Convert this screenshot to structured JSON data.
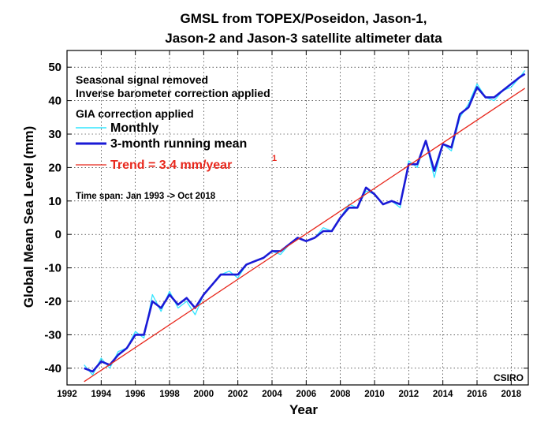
{
  "chart_data": {
    "type": "line",
    "title": [
      "GMSL from TOPEX/Poseidon, Jason-1,",
      "Jason-2 and Jason-3 satellite altimeter data"
    ],
    "xlabel": "Year",
    "ylabel": "Global Mean Sea Level (mm)",
    "xlim": [
      1992,
      2019
    ],
    "ylim": [
      -45,
      55
    ],
    "xticks": [
      1992,
      1994,
      1996,
      1998,
      2000,
      2002,
      2004,
      2006,
      2008,
      2010,
      2012,
      2014,
      2016,
      2018
    ],
    "yticks": [
      -40,
      -30,
      -20,
      -10,
      0,
      10,
      20,
      30,
      40,
      50
    ],
    "grid": true,
    "notes": [
      "Seasonal signal removed",
      "Inverse barometer correction applied",
      "GIA correction applied"
    ],
    "time_span": "Time span: Jan 1993 -> Oct 2018",
    "credit": "CSIRO",
    "legend_position": "top-left",
    "trend_rate_mm_per_year": 3.4,
    "series": [
      {
        "name": "Monthly",
        "color": "#33e5ff",
        "x": [
          1993.0,
          1993.5,
          1994.0,
          1994.5,
          1995.0,
          1995.5,
          1996.0,
          1996.5,
          1997.0,
          1997.5,
          1998.0,
          1998.5,
          1999.0,
          1999.5,
          2000.0,
          2000.5,
          2001.0,
          2001.5,
          2002.0,
          2002.5,
          2003.0,
          2003.5,
          2004.0,
          2004.5,
          2005.0,
          2005.5,
          2006.0,
          2006.5,
          2007.0,
          2007.5,
          2008.0,
          2008.5,
          2009.0,
          2009.5,
          2010.0,
          2010.5,
          2011.0,
          2011.5,
          2012.0,
          2012.5,
          2013.0,
          2013.5,
          2014.0,
          2014.5,
          2015.0,
          2015.5,
          2016.0,
          2016.5,
          2017.0,
          2017.5,
          2018.0,
          2018.5,
          2018.8
        ],
        "values": [
          -39,
          -42,
          -37,
          -40,
          -35,
          -34,
          -29,
          -31,
          -18,
          -23,
          -17,
          -22,
          -20,
          -24,
          -18,
          -15,
          -12,
          -11,
          -13,
          -9,
          -8,
          -7,
          -5,
          -6,
          -3,
          -1,
          -2,
          -1,
          2,
          1,
          5,
          9,
          8,
          13,
          12,
          9,
          10,
          8,
          22,
          20,
          28,
          17,
          27,
          25,
          35,
          39,
          45,
          41,
          40,
          43,
          44,
          47,
          49
        ]
      },
      {
        "name": "3-month running mean",
        "color": "#1a1ad6",
        "x": [
          1993.0,
          1993.5,
          1994.0,
          1994.5,
          1995.0,
          1995.5,
          1996.0,
          1996.5,
          1997.0,
          1997.5,
          1998.0,
          1998.5,
          1999.0,
          1999.5,
          2000.0,
          2000.5,
          2001.0,
          2001.5,
          2002.0,
          2002.5,
          2003.0,
          2003.5,
          2004.0,
          2004.5,
          2005.0,
          2005.5,
          2006.0,
          2006.5,
          2007.0,
          2007.5,
          2008.0,
          2008.5,
          2009.0,
          2009.5,
          2010.0,
          2010.5,
          2011.0,
          2011.5,
          2012.0,
          2012.5,
          2013.0,
          2013.5,
          2014.0,
          2014.5,
          2015.0,
          2015.5,
          2016.0,
          2016.5,
          2017.0,
          2017.5,
          2018.0,
          2018.5,
          2018.8
        ],
        "values": [
          -40,
          -41,
          -38,
          -39,
          -36,
          -34,
          -30,
          -30,
          -20,
          -22,
          -18,
          -21,
          -19,
          -22,
          -18,
          -15,
          -12,
          -12,
          -12,
          -9,
          -8,
          -7,
          -5,
          -5,
          -3,
          -1,
          -2,
          -1,
          1,
          1,
          5,
          8,
          8,
          14,
          12,
          9,
          10,
          9,
          21,
          21,
          28,
          19,
          27,
          26,
          36,
          38,
          44,
          41,
          41,
          43,
          45,
          47,
          48
        ]
      },
      {
        "name": "Trend = 3.4 mm/year",
        "superscript": "1",
        "color": "#e8271c",
        "x": [
          1993.0,
          2018.8
        ],
        "values": [
          -44.0,
          43.7
        ]
      }
    ]
  }
}
